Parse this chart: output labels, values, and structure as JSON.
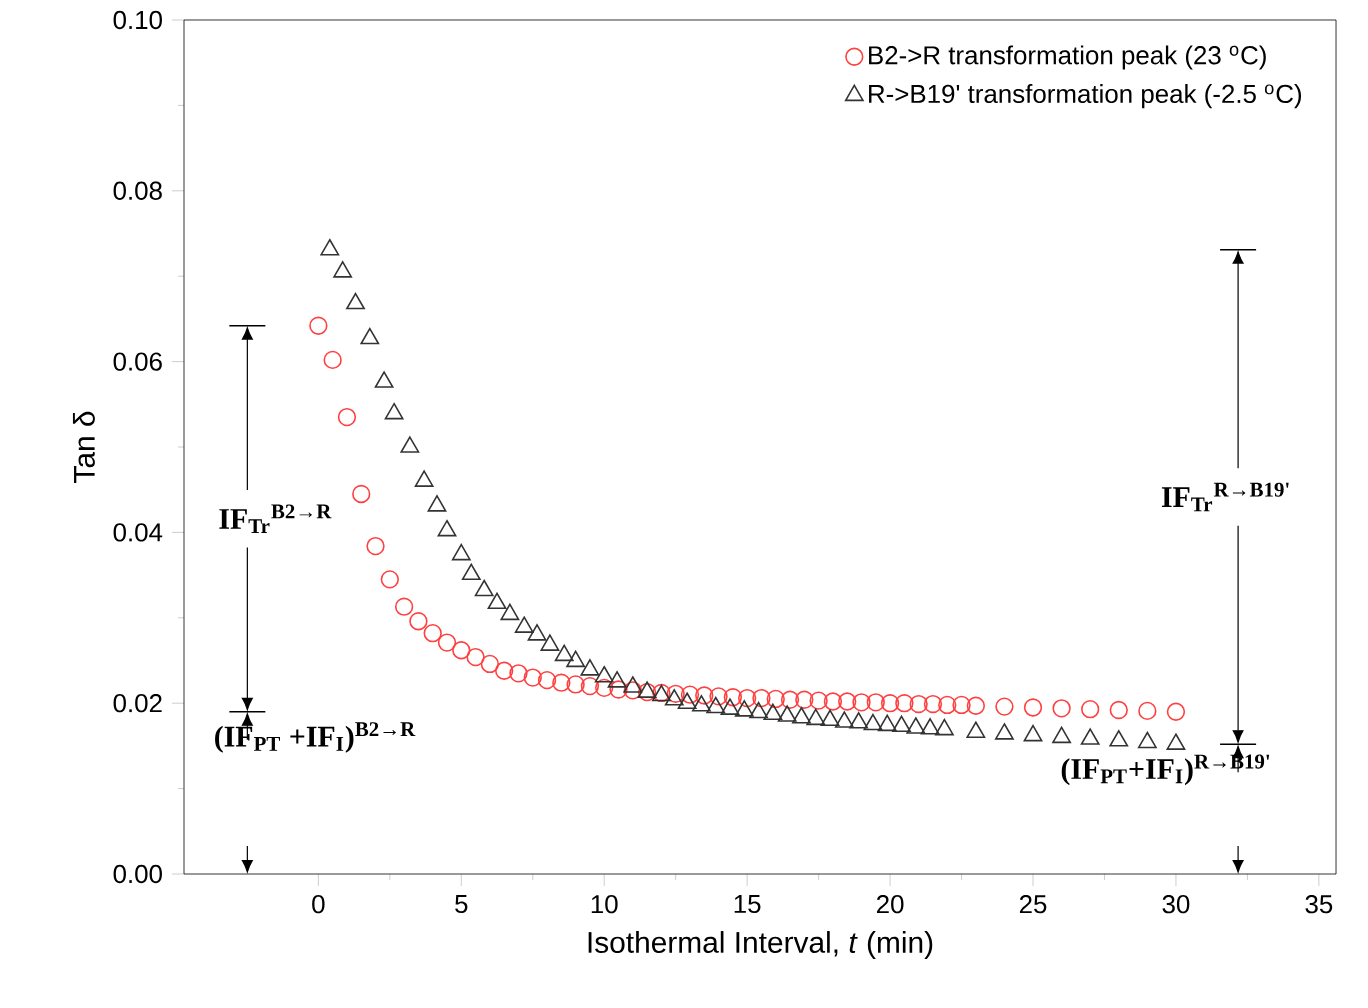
{
  "chart_data": {
    "type": "scatter",
    "xlabel": "Isothermal Interval, *t* (min)",
    "ylabel": "Tan δ",
    "xlim": [
      -4.7,
      35.6
    ],
    "xticks": [
      0,
      5,
      10,
      15,
      20,
      25,
      30,
      35
    ],
    "ylim": [
      0,
      0.1
    ],
    "yticks": [
      {
        "value": 0,
        "label": "0.00"
      },
      {
        "value": 0.02,
        "label": "0.02"
      },
      {
        "value": 0.04,
        "label": "0.04"
      },
      {
        "value": 0.06,
        "label": "0.06"
      },
      {
        "value": 0.08,
        "label": "0.08"
      },
      {
        "value": 0.1,
        "label": "0.10"
      }
    ],
    "grid": false,
    "legend": "top right",
    "series": [
      {
        "name": "B2->R transformation peak (23 $^{o}$C)",
        "color": "#ff4040",
        "marker": "circle",
        "x": [
          0,
          0.5,
          1,
          1.5,
          2,
          2.5,
          3,
          3.5,
          4,
          4.5,
          5,
          5.5,
          6,
          6.5,
          7,
          7.5,
          8,
          8.5,
          9,
          9.5,
          10,
          10.5,
          11,
          11.5,
          12,
          12.5,
          13,
          13.5,
          14,
          14.5,
          15,
          15.5,
          16,
          16.5,
          17,
          17.5,
          18,
          18.5,
          19,
          19.5,
          20,
          20.5,
          21,
          21.5,
          22,
          22.5,
          23,
          24,
          25,
          26,
          27,
          28,
          29,
          30
        ],
        "values": [
          0.0642,
          0.0602,
          0.0535,
          0.0445,
          0.0384,
          0.0345,
          0.0313,
          0.0296,
          0.0282,
          0.0271,
          0.0262,
          0.0254,
          0.0246,
          0.0238,
          0.0235,
          0.023,
          0.0227,
          0.0224,
          0.0222,
          0.022,
          0.0218,
          0.0216,
          0.0215,
          0.0213,
          0.0212,
          0.0211,
          0.021,
          0.0209,
          0.0208,
          0.0207,
          0.0206,
          0.0206,
          0.0205,
          0.0204,
          0.0204,
          0.0203,
          0.0202,
          0.0202,
          0.0201,
          0.0201,
          0.02,
          0.02,
          0.0199,
          0.0199,
          0.0198,
          0.0198,
          0.0197,
          0.0196,
          0.0195,
          0.0194,
          0.0193,
          0.0192,
          0.0191,
          0.019
        ]
      },
      {
        "name": "R->B19' transformation peak (-2.5 $^{o}$C)",
        "color": "#333333",
        "marker": "triangle",
        "x": [
          0.4,
          0.85,
          1.3,
          1.8,
          2.3,
          2.65,
          3.2,
          3.7,
          4.15,
          4.5,
          5,
          5.35,
          5.8,
          6.25,
          6.7,
          7.2,
          7.65,
          8.1,
          8.6,
          9,
          9.5,
          10,
          10.45,
          11,
          11.5,
          12,
          12.45,
          12.9,
          13.4,
          13.9,
          14.4,
          14.9,
          15.4,
          15.9,
          16.4,
          16.9,
          17.4,
          17.9,
          18.4,
          18.9,
          19.4,
          19.9,
          20.4,
          20.9,
          21.4,
          21.9,
          23,
          24,
          25,
          26,
          27,
          28,
          29,
          30
        ],
        "values": [
          0.0731,
          0.0705,
          0.0668,
          0.0627,
          0.0576,
          0.0539,
          0.05,
          0.046,
          0.0431,
          0.0402,
          0.0374,
          0.0351,
          0.0332,
          0.0317,
          0.0304,
          0.0289,
          0.028,
          0.0268,
          0.0256,
          0.0249,
          0.0239,
          0.0231,
          0.0225,
          0.0219,
          0.0213,
          0.0209,
          0.0204,
          0.02,
          0.0197,
          0.0195,
          0.0193,
          0.0191,
          0.0189,
          0.0187,
          0.0185,
          0.0183,
          0.0181,
          0.018,
          0.0178,
          0.0177,
          0.0175,
          0.0174,
          0.0173,
          0.0171,
          0.017,
          0.0169,
          0.0166,
          0.0164,
          0.0162,
          0.016,
          0.0158,
          0.0156,
          0.0154,
          0.0152
        ]
      }
    ],
    "annotations": [
      "IF$_{Tr}$$^{B2→R}$",
      "(IF$_{PT}$ +IF$_{I}$)$^{B2→R}$",
      "IF$_{Tr}$$^{R→B19'}$",
      "(IF$_{PT}$+IF$_{I}$)$^{R→B19'}$"
    ]
  }
}
